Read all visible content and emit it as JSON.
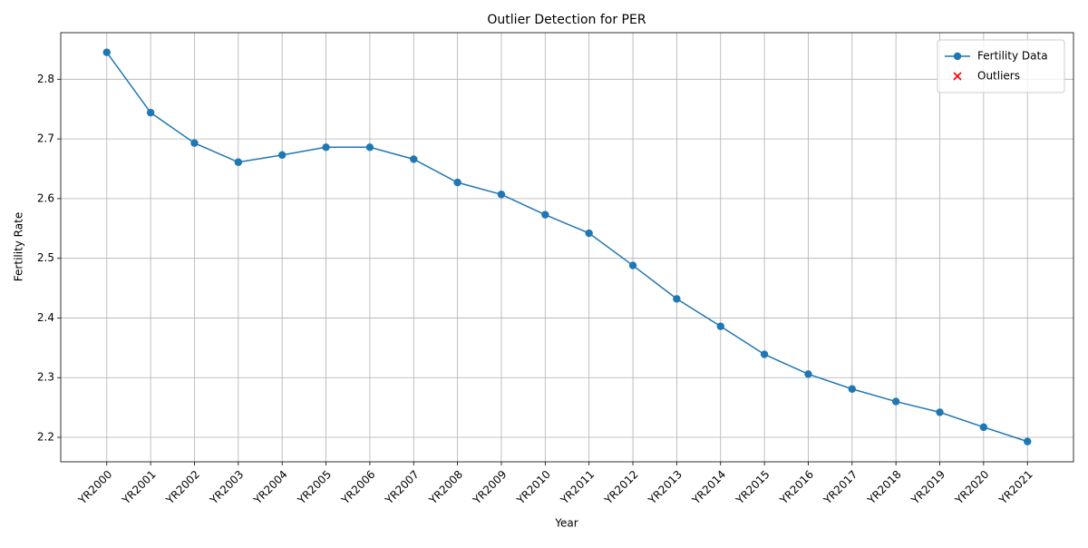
{
  "chart_data": {
    "type": "line",
    "title": "Outlier Detection for PER",
    "x_label": "Year",
    "y_label": "Fertility Rate",
    "categories": [
      "YR2000",
      "YR2001",
      "YR2002",
      "YR2003",
      "YR2004",
      "YR2005",
      "YR2006",
      "YR2007",
      "YR2008",
      "YR2009",
      "YR2010",
      "YR2011",
      "YR2012",
      "YR2013",
      "YR2014",
      "YR2015",
      "YR2016",
      "YR2017",
      "YR2018",
      "YR2019",
      "YR2020",
      "YR2021"
    ],
    "series": [
      {
        "name": "Fertility Data",
        "color": "#1f77b4",
        "marker": "o",
        "values": [
          2.845,
          2.744,
          2.693,
          2.661,
          2.673,
          2.686,
          2.686,
          2.666,
          2.627,
          2.607,
          2.573,
          2.542,
          2.488,
          2.432,
          2.386,
          2.339,
          2.306,
          2.281,
          2.26,
          2.242,
          2.217,
          2.193
        ]
      },
      {
        "name": "Outliers",
        "color": "#ff0000",
        "marker": "x",
        "values": [
          null,
          null,
          null,
          null,
          null,
          null,
          null,
          null,
          null,
          null,
          null,
          null,
          null,
          null,
          null,
          null,
          null,
          null,
          null,
          null,
          null,
          null
        ]
      }
    ],
    "ylim": [
      2.159,
      2.878
    ],
    "yticks": [
      2.2,
      2.3,
      2.4,
      2.5,
      2.6,
      2.7,
      2.8
    ],
    "grid": true,
    "legend": "upper right"
  }
}
